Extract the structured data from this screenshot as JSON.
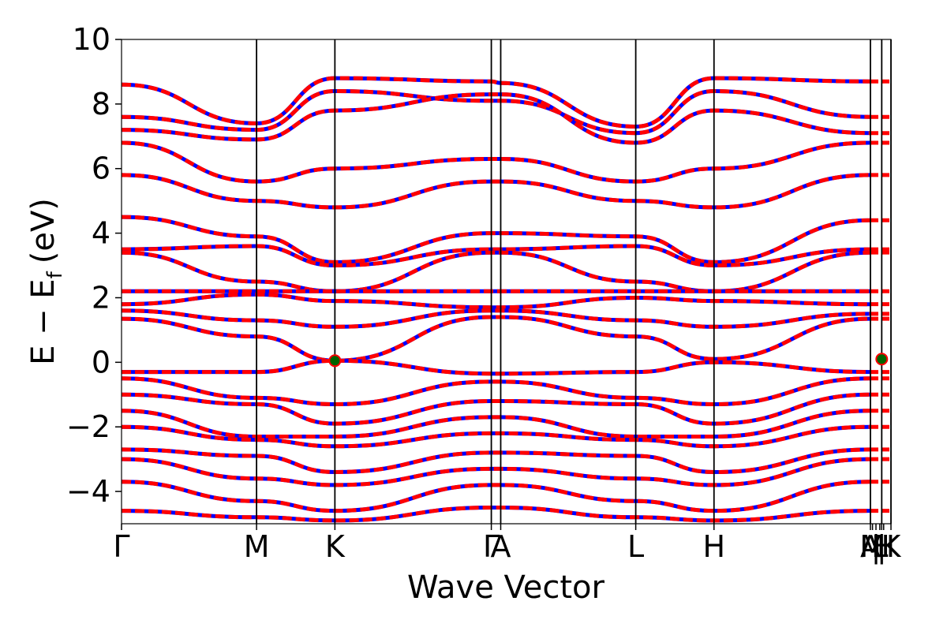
{
  "chart_data": {
    "type": "line",
    "xlabel": "Wave Vector",
    "ylabel": {
      "main": "E − E",
      "subscript": "f",
      "unit": "(eV)"
    },
    "ylim": [
      -5,
      10
    ],
    "y_ticks": [
      10,
      8,
      6,
      4,
      2,
      0,
      -2,
      -4
    ],
    "y_tick_labels": [
      "10",
      "8",
      "6",
      "4",
      "2",
      "0",
      "−2",
      "−4"
    ],
    "x_ticks": [
      {
        "label": "Γ",
        "k": 0.0
      },
      {
        "label": "M",
        "k": 0.1755
      },
      {
        "label": "K",
        "k": 0.2773
      },
      {
        "label": "Γ",
        "k": 0.4806
      },
      {
        "label": "A",
        "k": 0.4928
      },
      {
        "label": "L",
        "k": 0.6683
      },
      {
        "label": "H",
        "k": 0.77
      },
      {
        "label": "A",
        "k": 0.9733
      },
      {
        "label": "M",
        "k": 0.976
      },
      {
        "label": "|",
        "k": 0.9805
      },
      {
        "label": "L",
        "k": 0.9855
      },
      {
        "label": "|",
        "k": 0.988
      },
      {
        "label": "H",
        "k": 0.9905
      },
      {
        "label": "K",
        "k": 1.0
      }
    ],
    "high_symmetry_lines": [
      0.1755,
      0.2773,
      0.4806,
      0.4928,
      0.6683,
      0.77,
      0.9733,
      0.988,
      1.0
    ],
    "grid": false,
    "series_colors": [
      "#0000ff",
      "#ff0000"
    ],
    "marker_color": "#006400",
    "markers": [
      {
        "k": 0.2773,
        "E": 0.05
      },
      {
        "k": 0.988,
        "E": 0.1
      }
    ],
    "bands": [
      {
        "E": [
          8.6,
          7.4,
          8.8,
          8.7,
          8.65,
          7.3,
          8.8,
          8.7
        ]
      },
      {
        "E": [
          7.6,
          7.2,
          8.4,
          8.1,
          8.1,
          7.1,
          8.4,
          7.6
        ]
      },
      {
        "E": [
          7.2,
          6.9,
          7.8,
          8.3,
          8.3,
          6.8,
          7.8,
          7.1
        ]
      },
      {
        "E": [
          6.8,
          5.6,
          6.0,
          6.3,
          6.3,
          5.6,
          6.0,
          6.8
        ]
      },
      {
        "E": [
          5.8,
          5.0,
          4.8,
          5.6,
          5.6,
          5.0,
          4.8,
          5.8
        ]
      },
      {
        "E": [
          4.5,
          3.9,
          3.1,
          4.0,
          4.0,
          3.9,
          3.1,
          4.4
        ]
      },
      {
        "E": [
          3.5,
          3.6,
          3.0,
          3.5,
          3.5,
          3.6,
          3.0,
          3.5
        ]
      },
      {
        "E": [
          3.4,
          2.5,
          2.2,
          3.4,
          3.4,
          2.5,
          2.2,
          3.4
        ]
      },
      {
        "E": [
          2.2,
          2.2,
          2.2,
          2.2,
          2.2,
          2.2,
          2.2,
          2.2
        ]
      },
      {
        "E": [
          1.8,
          2.1,
          1.9,
          1.7,
          1.7,
          2.0,
          1.9,
          1.8
        ]
      },
      {
        "E": [
          1.6,
          1.3,
          1.1,
          1.6,
          1.6,
          1.3,
          1.1,
          1.5
        ]
      },
      {
        "E": [
          1.35,
          0.8,
          0.05,
          1.4,
          1.4,
          0.8,
          0.1,
          1.35
        ]
      },
      {
        "E": [
          -0.3,
          -0.3,
          0.05,
          -0.35,
          -0.35,
          -0.3,
          0.0,
          -0.3
        ]
      },
      {
        "E": [
          -0.5,
          -1.1,
          -1.3,
          -0.6,
          -0.6,
          -1.1,
          -1.3,
          -0.5
        ]
      },
      {
        "E": [
          -1.0,
          -1.3,
          -1.9,
          -1.2,
          -1.2,
          -1.3,
          -1.9,
          -1.0
        ]
      },
      {
        "E": [
          -1.5,
          -2.3,
          -2.3,
          -1.7,
          -1.7,
          -2.3,
          -2.3,
          -1.5
        ]
      },
      {
        "E": [
          -2.0,
          -2.4,
          -2.6,
          -2.2,
          -2.2,
          -2.4,
          -2.6,
          -2.0
        ]
      },
      {
        "E": [
          -2.7,
          -2.9,
          -3.4,
          -2.8,
          -2.8,
          -2.9,
          -3.4,
          -2.7
        ]
      },
      {
        "E": [
          -3.0,
          -3.6,
          -3.8,
          -3.3,
          -3.3,
          -3.6,
          -3.8,
          -3.0
        ]
      },
      {
        "E": [
          -3.7,
          -4.3,
          -4.6,
          -3.8,
          -3.8,
          -4.3,
          -4.6,
          -3.7
        ]
      },
      {
        "E": [
          -4.6,
          -4.8,
          -4.9,
          -4.5,
          -4.5,
          -4.8,
          -4.9,
          -4.6
        ]
      }
    ]
  }
}
